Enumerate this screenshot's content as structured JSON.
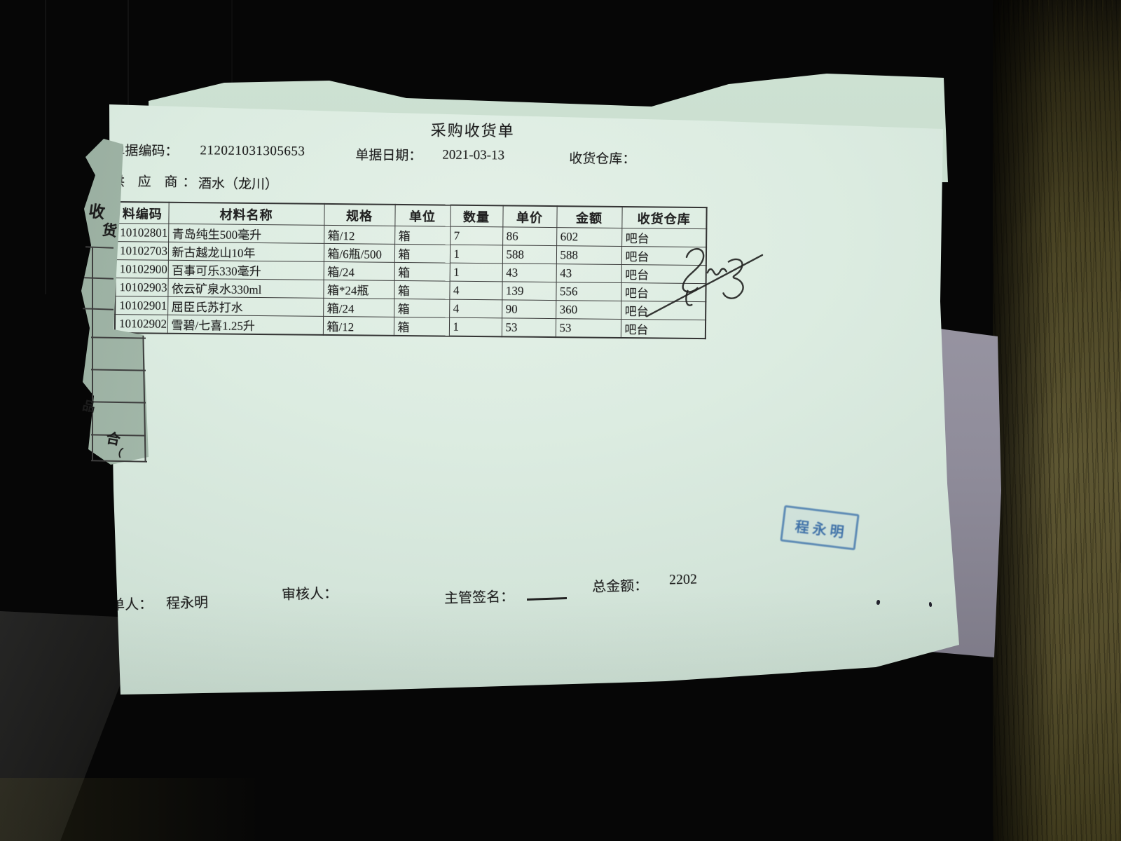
{
  "document": {
    "title": "采购收货单",
    "fields": {
      "doc_no_label": "单据编码：",
      "doc_no": "212021031305653",
      "date_label": "单据日期：",
      "date": "2021-03-13",
      "warehouse_label": "收货仓库：",
      "warehouse": "",
      "supplier_label": "供 应 商：",
      "supplier": "酒水（龙川）"
    },
    "table": {
      "headers": [
        "料编码",
        "材料名称",
        "规格",
        "单位",
        "数量",
        "单价",
        "金额",
        "收货仓库"
      ],
      "rows": [
        [
          "10102801",
          "青岛纯生500毫升",
          "箱/12",
          "箱",
          "7",
          "86",
          "602",
          "吧台"
        ],
        [
          "10102703",
          "新古越龙山10年",
          "箱/6瓶/500",
          "箱",
          "1",
          "588",
          "588",
          "吧台"
        ],
        [
          "10102900",
          "百事可乐330毫升",
          "箱/24",
          "箱",
          "1",
          "43",
          "43",
          "吧台"
        ],
        [
          "10102903",
          "依云矿泉水330ml",
          "箱*24瓶",
          "箱",
          "4",
          "139",
          "556",
          "吧台"
        ],
        [
          "10102901",
          "屈臣氏苏打水",
          "箱/24",
          "箱",
          "4",
          "90",
          "360",
          "吧台"
        ],
        [
          "10102902",
          "雪碧/七喜1.25升",
          "箱/12",
          "箱",
          "1",
          "53",
          "53",
          "吧台"
        ]
      ]
    },
    "footer": {
      "maker_label": "单人：",
      "maker_name": "程永明",
      "reviewer_label": "审核人：",
      "manager_sign_label": "主管签名：",
      "total_label": "总金额：",
      "total_value": "2202"
    },
    "stamp": {
      "name": "程永明"
    }
  },
  "under_sheet": {
    "fragments": [
      "收",
      "货",
      "品",
      "合",
      "（"
    ]
  },
  "colors": {
    "paper": "#d6e6db",
    "ink": "#1f1f1f",
    "stamp_blue": "#3e72aa",
    "wood": "#554e2c",
    "background": "#060606"
  }
}
